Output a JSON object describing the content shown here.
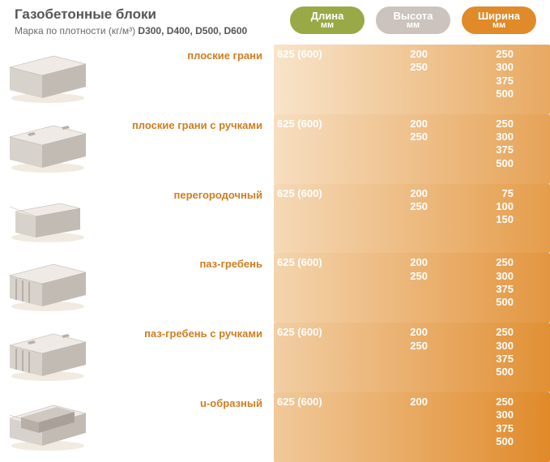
{
  "colors": {
    "pill_length": "#99a946",
    "pill_height": "#cbc3bc",
    "pill_width": "#e08a2a",
    "row_label": "#d07d1f",
    "gradient_start": "#fdf4e6",
    "gradient_end": "#e08a2a"
  },
  "header": {
    "title": "Газобетонные блоки",
    "subtitle_prefix": "Марка по плотности (кг/м³) ",
    "subtitle_bold": "D300, D400, D500, D600"
  },
  "pills": {
    "length": {
      "top": "Длина",
      "bottom": "мм"
    },
    "height": {
      "top": "Высота",
      "bottom": "мм"
    },
    "width": {
      "top": "Ширина",
      "bottom": "мм"
    }
  },
  "rows": [
    {
      "shape": "plain",
      "label": "плоские грани",
      "length": [
        "625 (600)"
      ],
      "height": [
        "200",
        "250"
      ],
      "width": [
        "250",
        "300",
        "375",
        "500"
      ]
    },
    {
      "shape": "handles",
      "label": "плоские грани с ручками",
      "length": [
        "625 (600)"
      ],
      "height": [
        "200",
        "250"
      ],
      "width": [
        "250",
        "300",
        "375",
        "500"
      ]
    },
    {
      "shape": "thin",
      "label": "перегородочный",
      "length": [
        "625 (600)"
      ],
      "height": [
        "200",
        "250"
      ],
      "width": [
        "75",
        "100",
        "150"
      ]
    },
    {
      "shape": "tongue",
      "label": "паз-гребень",
      "length": [
        "625 (600)"
      ],
      "height": [
        "200",
        "250"
      ],
      "width": [
        "250",
        "300",
        "375",
        "500"
      ]
    },
    {
      "shape": "tongue_h",
      "label": "паз-гребень с ручками",
      "length": [
        "625 (600)"
      ],
      "height": [
        "200",
        "250"
      ],
      "width": [
        "250",
        "300",
        "375",
        "500"
      ]
    },
    {
      "shape": "ublock",
      "label": "u-образный",
      "length": [
        "625 (600)"
      ],
      "height": [
        "200"
      ],
      "width": [
        "250",
        "300",
        "375",
        "500"
      ]
    }
  ]
}
